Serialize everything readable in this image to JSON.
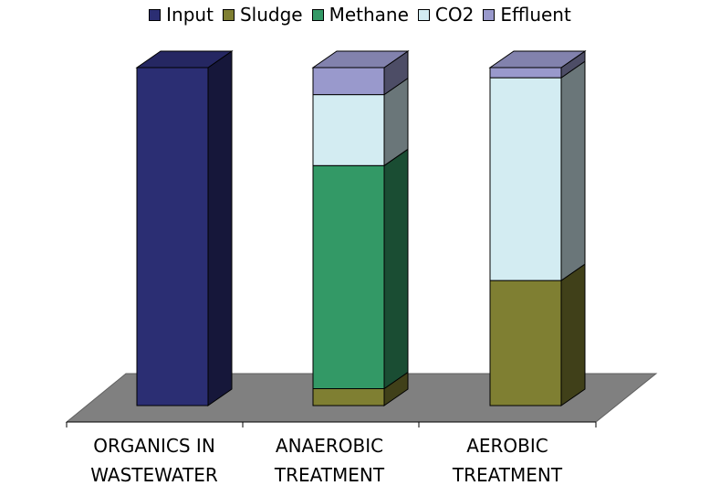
{
  "chart_data": {
    "type": "bar",
    "stacked": true,
    "three_d": true,
    "title": "",
    "xlabel": "",
    "ylabel": "",
    "legend_position": "top",
    "categories": [
      "ORGANICS IN\nWASTEWATER",
      "ANAEROBIC\nTREATMENT",
      "AEROBIC\nTREATMENT"
    ],
    "ylim": [
      0,
      100
    ],
    "series": [
      {
        "name": "Input",
        "color": "#2b2e73",
        "values": [
          100,
          0,
          0
        ]
      },
      {
        "name": "Sludge",
        "color": "#7f7f32",
        "values": [
          0,
          5,
          37
        ]
      },
      {
        "name": "Methane",
        "color": "#339966",
        "values": [
          0,
          66,
          0
        ]
      },
      {
        "name": "CO2",
        "color": "#d3ecf2",
        "values": [
          0,
          21,
          60
        ]
      },
      {
        "name": "Effluent",
        "color": "#9999cc",
        "values": [
          0,
          8,
          3
        ]
      }
    ]
  }
}
